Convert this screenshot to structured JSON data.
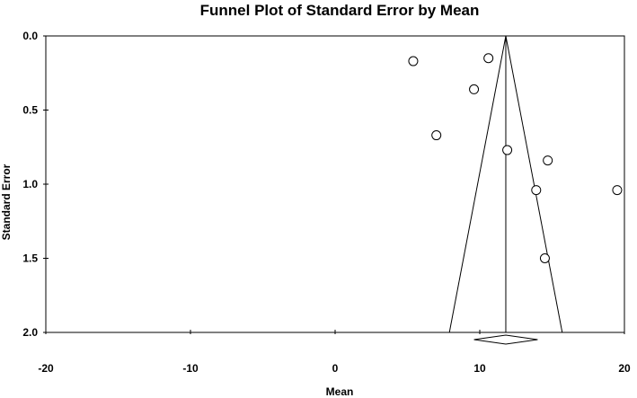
{
  "chart_data": {
    "type": "scatter",
    "title": "Funnel Plot of Standard Error by Mean",
    "xlabel": "Mean",
    "ylabel": "Standard Error",
    "xlim": [
      -20,
      20
    ],
    "ylim": [
      0,
      2
    ],
    "y_inverted": true,
    "x_ticks": [
      -20,
      -10,
      0,
      10,
      20
    ],
    "x_tick_labels": [
      "-20",
      "-10",
      "0",
      "10",
      "20"
    ],
    "y_ticks": [
      0,
      0.5,
      1,
      1.5,
      2
    ],
    "y_tick_labels": [
      "0.0",
      "0.5",
      "1.0",
      "1.5",
      "2.0"
    ],
    "grid": false,
    "legend": "none",
    "points": [
      {
        "x": 5.4,
        "y": 0.17
      },
      {
        "x": 10.6,
        "y": 0.15
      },
      {
        "x": 9.6,
        "y": 0.36
      },
      {
        "x": 7.0,
        "y": 0.67
      },
      {
        "x": 11.9,
        "y": 0.77
      },
      {
        "x": 14.7,
        "y": 0.84
      },
      {
        "x": 13.9,
        "y": 1.04
      },
      {
        "x": 19.5,
        "y": 1.04
      },
      {
        "x": 14.5,
        "y": 1.5
      }
    ],
    "combined_mean": 11.8,
    "funnel_apex": {
      "x": 11.8,
      "y": 0
    },
    "funnel_bottom": {
      "y": 2,
      "x_left": 7.9,
      "x_right": 15.7
    },
    "diamond": {
      "center": 11.8,
      "lower": 9.6,
      "upper": 14.0
    },
    "colors": {
      "stroke": "#000000",
      "marker_fill": "#ffffff",
      "background": "#ffffff"
    }
  }
}
